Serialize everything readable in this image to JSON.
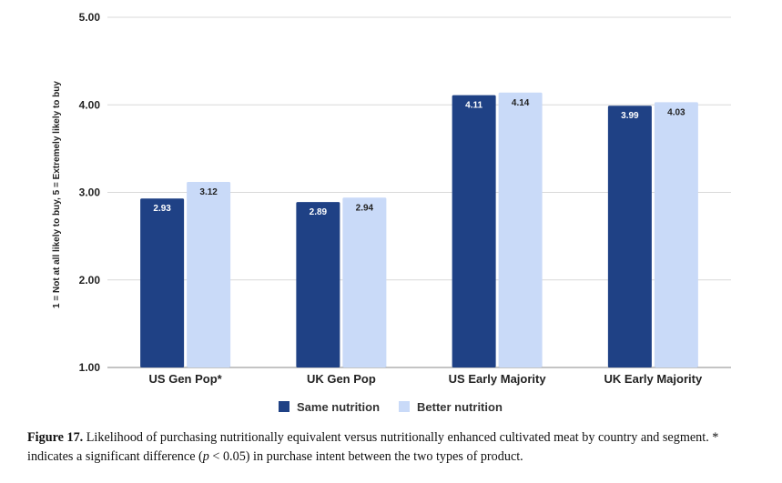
{
  "chart_data": {
    "type": "bar",
    "categories": [
      "US Gen Pop*",
      "UK Gen Pop",
      "US Early Majority",
      "UK Early Majority"
    ],
    "series": [
      {
        "name": "Same nutrition",
        "values": [
          2.93,
          2.89,
          4.11,
          3.99
        ],
        "labels": [
          "2.93",
          "2.89",
          "4.11",
          "3.99"
        ],
        "color": "#1f4185",
        "label_color": "#ffffff"
      },
      {
        "name": "Better nutrition",
        "values": [
          3.12,
          2.94,
          4.14,
          4.03
        ],
        "labels": [
          "3.12",
          "2.94",
          "4.14",
          "4.03"
        ],
        "color": "#c9daf8",
        "label_color": "#222222"
      }
    ],
    "ylabel": "1 = Not at all likely to buy, 5 = Extremely likely to buy",
    "ylim": [
      1,
      5
    ],
    "yticks": [
      "1.00",
      "2.00",
      "3.00",
      "4.00",
      "5.00"
    ],
    "grid": true,
    "legend_position": "bottom"
  },
  "caption": {
    "label": "Figure 17.",
    "text_1": " Likelihood of purchasing nutritionally equivalent versus nutritionally enhanced cultivated meat by country and segment. * indicates a significant difference (",
    "italic": "p",
    "text_2": " < 0.05) in purchase intent between the two types of product."
  }
}
